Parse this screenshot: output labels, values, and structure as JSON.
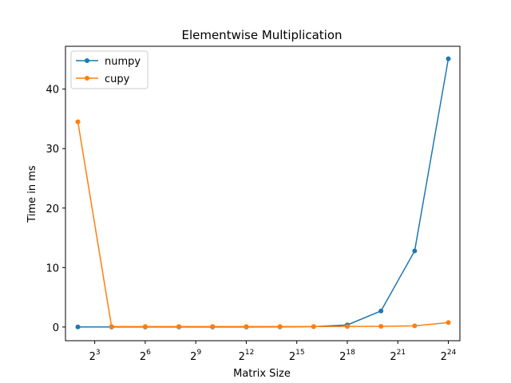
{
  "chart_data": {
    "type": "line",
    "title": "Elementwise Multiplication",
    "xlabel": "Matrix Size",
    "ylabel": "Time in ms",
    "x_scale": "log2",
    "x": [
      4,
      16,
      64,
      256,
      1024,
      4096,
      16384,
      65536,
      262144,
      1048576,
      4194304,
      16777216
    ],
    "xlim": [
      2.4,
      27000000
    ],
    "ylim": [
      -2.3,
      47.2
    ],
    "x_ticks": [
      {
        "base": "2",
        "exp": "3",
        "value": 8
      },
      {
        "base": "2",
        "exp": "6",
        "value": 64
      },
      {
        "base": "2",
        "exp": "9",
        "value": 512
      },
      {
        "base": "2",
        "exp": "12",
        "value": 4096
      },
      {
        "base": "2",
        "exp": "15",
        "value": 32768
      },
      {
        "base": "2",
        "exp": "18",
        "value": 262144
      },
      {
        "base": "2",
        "exp": "21",
        "value": 2097152
      },
      {
        "base": "2",
        "exp": "24",
        "value": 16777216
      }
    ],
    "y_ticks": [
      {
        "label": "0",
        "value": 0
      },
      {
        "label": "10",
        "value": 10
      },
      {
        "label": "20",
        "value": 20
      },
      {
        "label": "30",
        "value": 30
      },
      {
        "label": "40",
        "value": 40
      }
    ],
    "grid": false,
    "legend_position": "top-left",
    "series": [
      {
        "name": "numpy",
        "color": "#1f77b4",
        "values": [
          0.02,
          0.02,
          0.02,
          0.02,
          0.02,
          0.02,
          0.03,
          0.06,
          0.35,
          2.7,
          12.8,
          45.1
        ]
      },
      {
        "name": "cupy",
        "color": "#ff7f0e",
        "values": [
          34.5,
          0.08,
          0.08,
          0.08,
          0.08,
          0.08,
          0.08,
          0.08,
          0.09,
          0.12,
          0.2,
          0.75
        ]
      }
    ]
  }
}
